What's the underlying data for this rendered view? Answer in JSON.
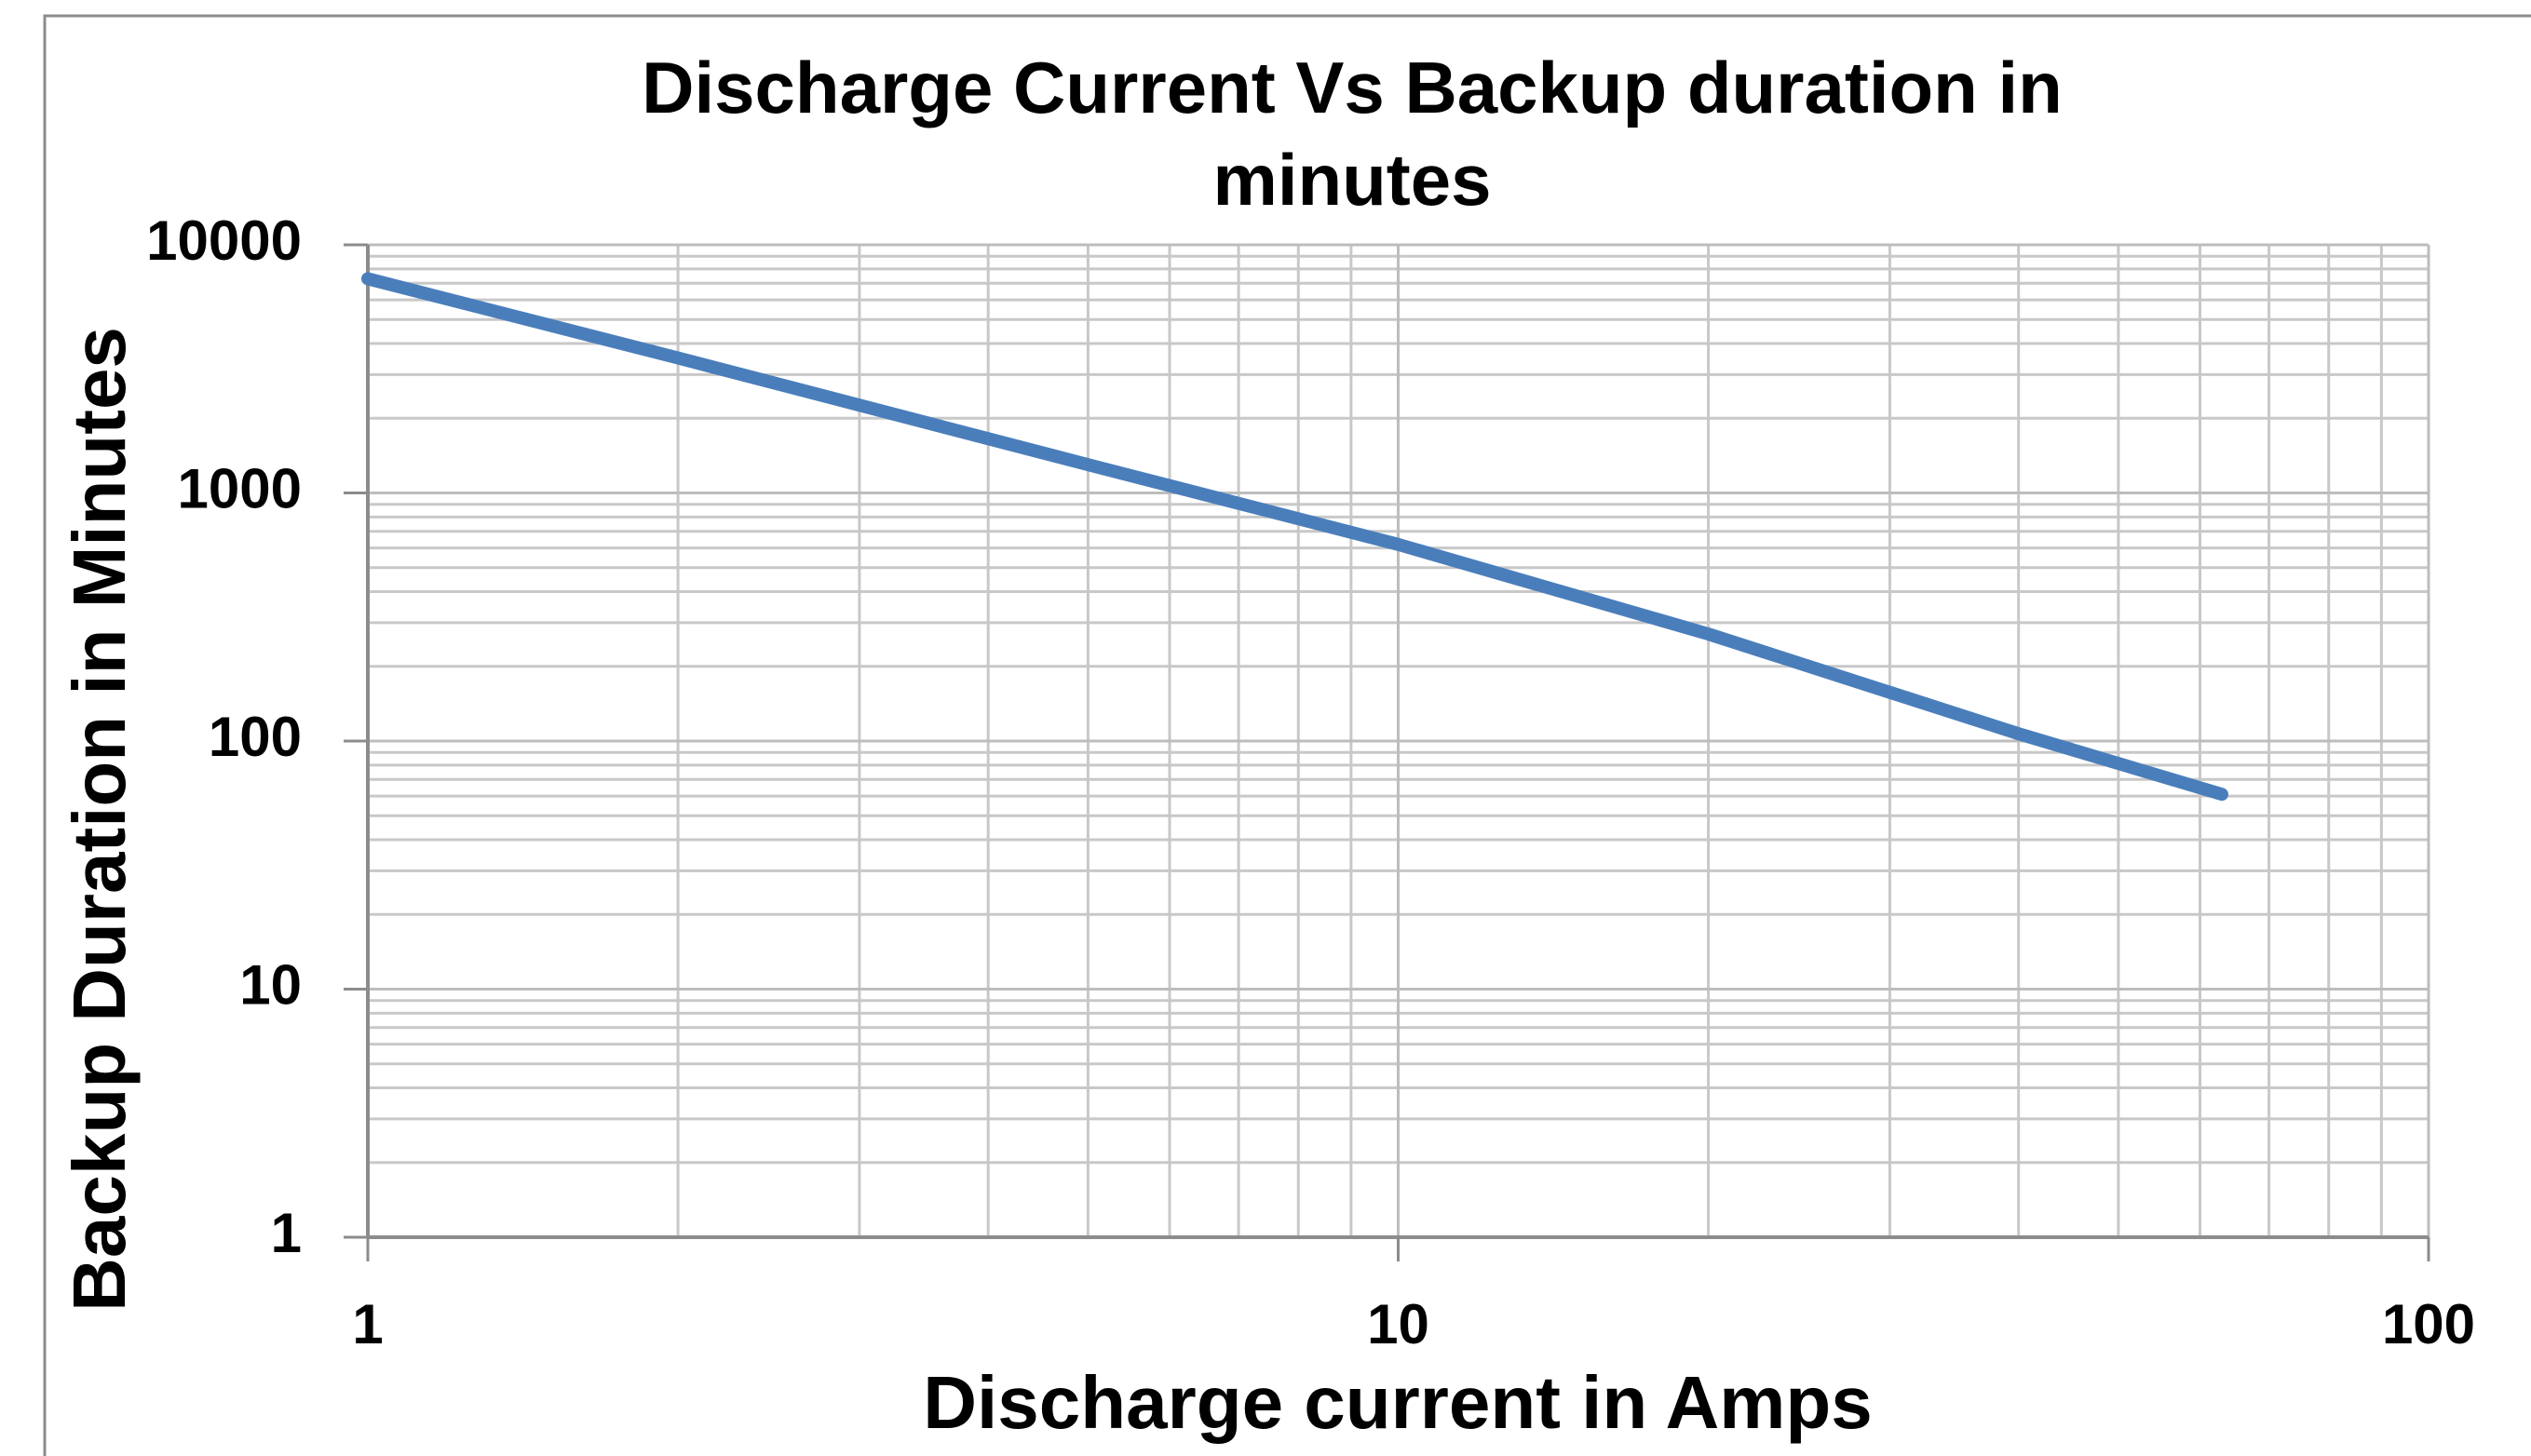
{
  "chart_data": {
    "type": "line",
    "title": "Discharge Current Vs Backup duration in minutes",
    "x_label": "Discharge current in Amps",
    "y_label": "Backup Duration in Minutes",
    "x": [
      1,
      2,
      5,
      10,
      20,
      40,
      63
    ],
    "series": [
      {
        "name": "Backup duration",
        "color": "#4a7ebb",
        "values": [
          7300,
          3500,
          1300,
          620,
          270,
          107,
          61
        ]
      }
    ],
    "xlim": [
      1,
      100
    ],
    "xticks": [
      1,
      10,
      100
    ],
    "ylim": [
      1,
      10000
    ],
    "yticks": [
      1,
      10,
      100,
      1000,
      10000
    ],
    "xlog": true,
    "ylog": true,
    "grid": true,
    "minor_grid": true,
    "legend": false
  }
}
